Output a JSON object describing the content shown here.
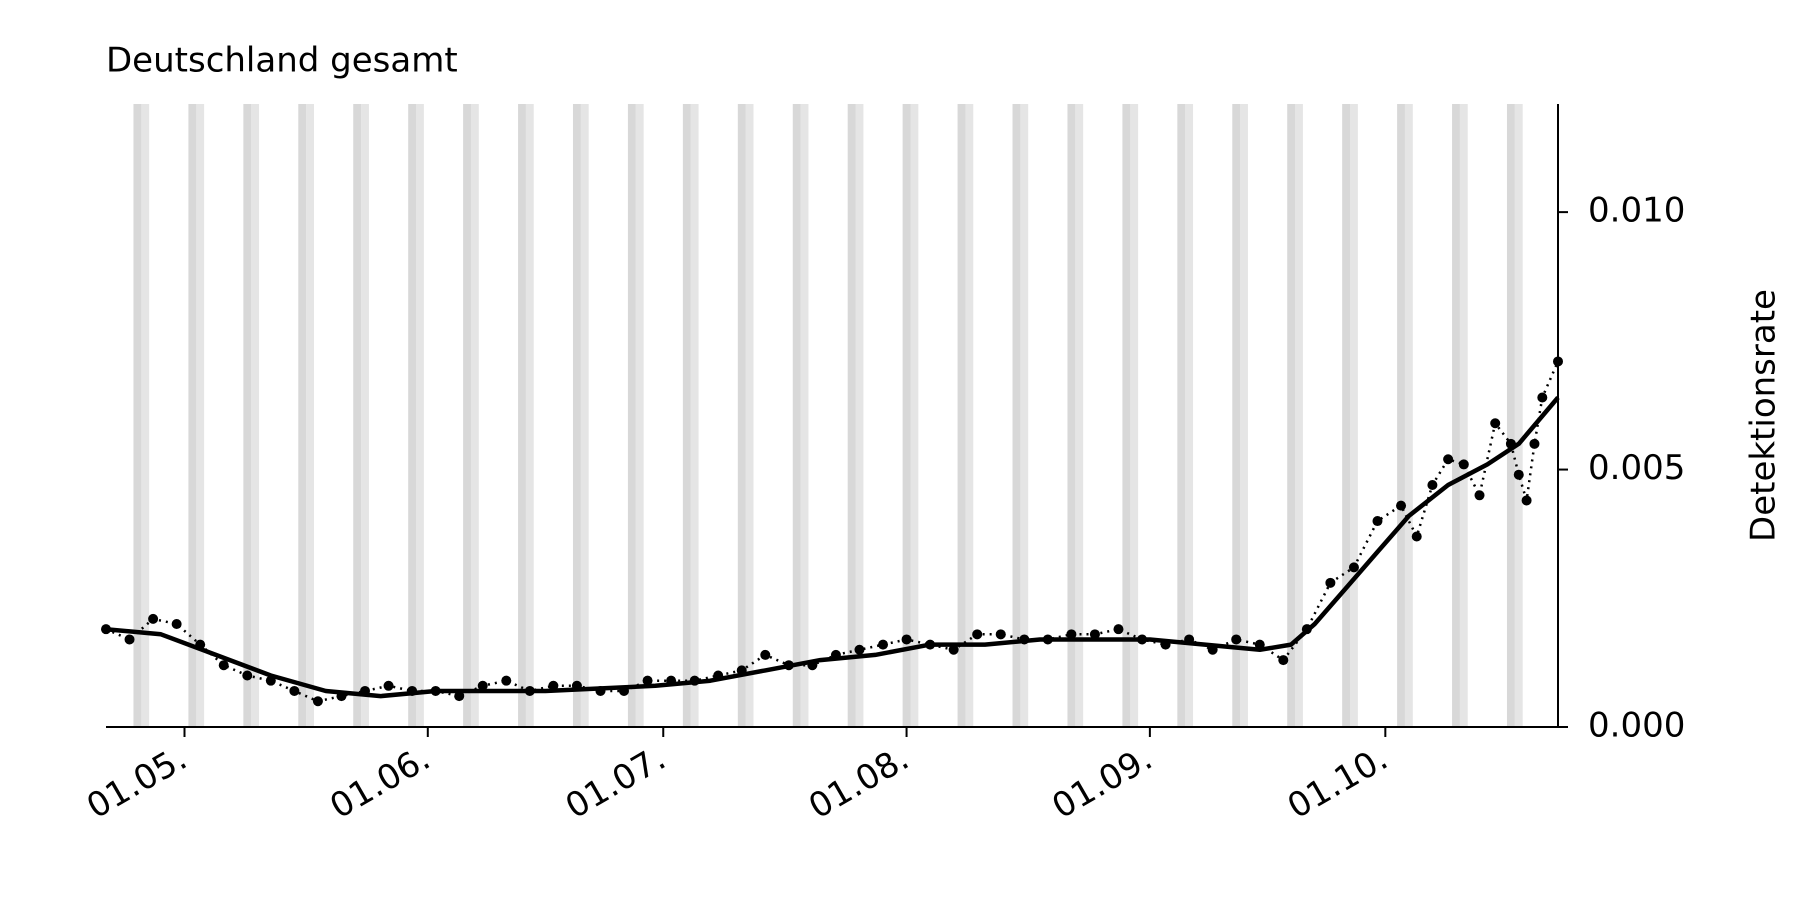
{
  "chart_data": {
    "type": "line",
    "title": "Deutschland gesamt",
    "y_label": "Detektionsrate",
    "y_axis_side": "right",
    "xlim": [
      "21.04.",
      "23.10."
    ],
    "xticks": [
      "01.05.",
      "01.06.",
      "01.07.",
      "01.08.",
      "01.09.",
      "01.10."
    ],
    "ylim": [
      0,
      0.0121
    ],
    "yticks": [
      {
        "value": 0,
        "label": "0.000"
      },
      {
        "value": 0.005,
        "label": "0.005"
      },
      {
        "value": 0.01,
        "label": "0.010"
      }
    ],
    "shaded_days": [
      "25.04.",
      "02.05.",
      "09.05.",
      "16.05.",
      "23.05.",
      "30.05.",
      "06.06.",
      "13.06.",
      "20.06.",
      "27.06.",
      "04.07.",
      "11.07.",
      "18.07.",
      "25.07.",
      "01.08.",
      "08.08.",
      "15.08.",
      "22.08.",
      "29.08.",
      "05.09.",
      "12.09.",
      "19.09.",
      "26.09.",
      "03.10.",
      "10.10.",
      "17.10."
    ],
    "shade_color": "#d4d4d4",
    "series": [
      {
        "color": "#000000",
        "x": [
          "21.04.",
          "24.04.",
          "27.04.",
          "30.04.",
          "03.05.",
          "06.05.",
          "09.05.",
          "12.05.",
          "15.05.",
          "18.05.",
          "21.05.",
          "24.05.",
          "27.05.",
          "30.05.",
          "02.06.",
          "05.06.",
          "08.06.",
          "11.06.",
          "14.06.",
          "17.06.",
          "20.06.",
          "23.06.",
          "26.06.",
          "29.06.",
          "02.07.",
          "05.07.",
          "08.07.",
          "11.07.",
          "14.07.",
          "17.07.",
          "20.07.",
          "23.07.",
          "26.07.",
          "29.07.",
          "01.08.",
          "04.08.",
          "07.08.",
          "10.08.",
          "13.08.",
          "16.08.",
          "19.08.",
          "22.08.",
          "25.08.",
          "28.08.",
          "31.08.",
          "03.09.",
          "06.09.",
          "09.09.",
          "12.09.",
          "15.09.",
          "18.09.",
          "21.09.",
          "24.09.",
          "27.09.",
          "30.09.",
          "03.10.",
          "05.10.",
          "07.10.",
          "09.10.",
          "11.10.",
          "13.10.",
          "15.10.",
          "17.10.",
          "18.10.",
          "19.10.",
          "20.10.",
          "21.10.",
          "23.10."
        ],
        "values": [
          0.0019,
          0.0017,
          0.0021,
          0.002,
          0.0016,
          0.0012,
          0.001,
          0.0009,
          0.0007,
          0.0005,
          0.0006,
          0.0007,
          0.0008,
          0.0007,
          0.0007,
          0.0006,
          0.0008,
          0.0009,
          0.0007,
          0.0008,
          0.0008,
          0.0007,
          0.0007,
          0.0009,
          0.0009,
          0.0009,
          0.001,
          0.0011,
          0.0014,
          0.0012,
          0.0012,
          0.0014,
          0.0015,
          0.0016,
          0.0017,
          0.0016,
          0.0015,
          0.0018,
          0.0018,
          0.0017,
          0.0017,
          0.0018,
          0.0018,
          0.0019,
          0.0017,
          0.0016,
          0.0017,
          0.0015,
          0.0017,
          0.0016,
          0.0013,
          0.0019,
          0.0028,
          0.0031,
          0.004,
          0.0043,
          0.0037,
          0.0047,
          0.0052,
          0.0051,
          0.0045,
          0.0059,
          0.0055,
          0.0049,
          0.0044,
          0.0055,
          0.0064,
          0.0071
        ]
      }
    ],
    "trend": {
      "color": "#000000",
      "x": [
        "21.04.",
        "28.04.",
        "05.05.",
        "12.05.",
        "19.05.",
        "26.05.",
        "02.06.",
        "16.06.",
        "30.06.",
        "07.07.",
        "14.07.",
        "21.07.",
        "28.07.",
        "04.08.",
        "11.08.",
        "18.08.",
        "25.08.",
        "01.09.",
        "08.09.",
        "15.09.",
        "19.09.",
        "22.09.",
        "26.09.",
        "30.09.",
        "04.10.",
        "09.10.",
        "14.10.",
        "18.10.",
        "23.10."
      ],
      "values": [
        0.0019,
        0.0018,
        0.0014,
        0.001,
        0.0007,
        0.0006,
        0.0007,
        0.0007,
        0.0008,
        0.0009,
        0.0011,
        0.0013,
        0.0014,
        0.0016,
        0.0016,
        0.0017,
        0.0017,
        0.0017,
        0.0016,
        0.0015,
        0.0016,
        0.002,
        0.0027,
        0.0034,
        0.0041,
        0.0047,
        0.0051,
        0.0055,
        0.0064
      ]
    }
  }
}
